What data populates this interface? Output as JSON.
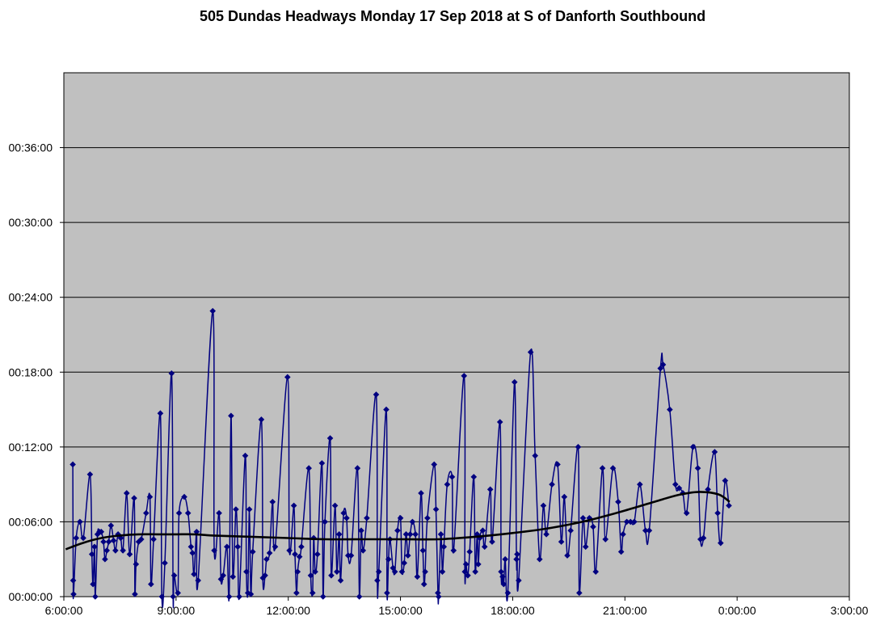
{
  "chart_data": {
    "type": "line",
    "title": "505 Dundas Headways Monday 17 Sep 2018 at S of Danforth Southbound",
    "xlabel": "",
    "ylabel": "",
    "x_unit": "hours",
    "y_unit": "minutes",
    "xlim": [
      6,
      27
    ],
    "ylim": [
      0,
      42
    ],
    "grid": true,
    "background_color": "#c0c0c0",
    "x_ticks": [
      {
        "value": 6,
        "label": "6:00:00"
      },
      {
        "value": 9,
        "label": "9:00:00"
      },
      {
        "value": 12,
        "label": "12:00:00"
      },
      {
        "value": 15,
        "label": "15:00:00"
      },
      {
        "value": 18,
        "label": "18:00:00"
      },
      {
        "value": 21,
        "label": "21:00:00"
      },
      {
        "value": 24,
        "label": "0:00:00"
      },
      {
        "value": 27,
        "label": "3:00:00"
      }
    ],
    "y_ticks": [
      {
        "value": 0,
        "label": "00:00:00"
      },
      {
        "value": 6,
        "label": "00:06:00"
      },
      {
        "value": 12,
        "label": "00:12:00"
      },
      {
        "value": 18,
        "label": "00:18:00"
      },
      {
        "value": 24,
        "label": "00:24:00"
      },
      {
        "value": 30,
        "label": "00:30:00"
      },
      {
        "value": 36,
        "label": "00:36:00"
      }
    ],
    "series": [
      {
        "color": "#000080",
        "marker": "diamond",
        "points": [
          [
            6.24,
            10.6
          ],
          [
            6.25,
            1.3
          ],
          [
            6.26,
            0.2
          ],
          [
            6.33,
            4.7
          ],
          [
            6.43,
            6.0
          ],
          [
            6.52,
            4.7
          ],
          [
            6.7,
            9.8
          ],
          [
            6.75,
            3.4
          ],
          [
            6.78,
            1.0
          ],
          [
            6.82,
            4.0
          ],
          [
            6.84,
            0.0
          ],
          [
            6.9,
            5.0
          ],
          [
            6.95,
            5.2
          ],
          [
            7.0,
            5.2
          ],
          [
            7.06,
            4.4
          ],
          [
            7.1,
            3.0
          ],
          [
            7.15,
            3.7
          ],
          [
            7.2,
            4.4
          ],
          [
            7.26,
            5.7
          ],
          [
            7.33,
            4.5
          ],
          [
            7.38,
            3.7
          ],
          [
            7.45,
            5.0
          ],
          [
            7.52,
            4.7
          ],
          [
            7.58,
            3.7
          ],
          [
            7.68,
            8.3
          ],
          [
            7.76,
            3.4
          ],
          [
            7.88,
            7.9
          ],
          [
            7.9,
            0.2
          ],
          [
            7.93,
            2.6
          ],
          [
            8.0,
            4.4
          ],
          [
            8.07,
            4.6
          ],
          [
            8.2,
            6.7
          ],
          [
            8.3,
            8.0
          ],
          [
            8.33,
            1.0
          ],
          [
            8.4,
            4.6
          ],
          [
            8.58,
            14.7
          ],
          [
            8.62,
            0.0
          ],
          [
            8.7,
            2.7
          ],
          [
            8.88,
            17.9
          ],
          [
            8.92,
            0.0
          ],
          [
            8.95,
            1.7
          ],
          [
            9.05,
            0.3
          ],
          [
            9.08,
            6.7
          ],
          [
            9.22,
            8.0
          ],
          [
            9.32,
            6.7
          ],
          [
            9.4,
            4.0
          ],
          [
            9.44,
            3.5
          ],
          [
            9.48,
            1.8
          ],
          [
            9.55,
            5.2
          ],
          [
            9.59,
            1.3
          ],
          [
            9.98,
            22.9
          ],
          [
            10.02,
            3.7
          ],
          [
            10.15,
            6.7
          ],
          [
            10.2,
            1.4
          ],
          [
            10.26,
            1.7
          ],
          [
            10.36,
            4.0
          ],
          [
            10.42,
            0.0
          ],
          [
            10.47,
            14.5
          ],
          [
            10.52,
            1.6
          ],
          [
            10.6,
            7.0
          ],
          [
            10.65,
            4.0
          ],
          [
            10.69,
            0.0
          ],
          [
            10.85,
            11.3
          ],
          [
            10.88,
            2.0
          ],
          [
            10.92,
            0.3
          ],
          [
            10.96,
            7.0
          ],
          [
            11.0,
            0.2
          ],
          [
            11.05,
            3.6
          ],
          [
            11.28,
            14.2
          ],
          [
            11.32,
            1.5
          ],
          [
            11.38,
            1.7
          ],
          [
            11.42,
            3.0
          ],
          [
            11.5,
            3.5
          ],
          [
            11.58,
            7.6
          ],
          [
            11.65,
            4.0
          ],
          [
            11.98,
            17.6
          ],
          [
            12.03,
            3.7
          ],
          [
            12.15,
            7.3
          ],
          [
            12.18,
            3.4
          ],
          [
            12.22,
            0.3
          ],
          [
            12.25,
            2.0
          ],
          [
            12.3,
            3.2
          ],
          [
            12.35,
            4.0
          ],
          [
            12.55,
            10.3
          ],
          [
            12.6,
            1.7
          ],
          [
            12.65,
            0.3
          ],
          [
            12.68,
            4.7
          ],
          [
            12.72,
            2.0
          ],
          [
            12.78,
            3.4
          ],
          [
            12.9,
            10.7
          ],
          [
            12.93,
            0.0
          ],
          [
            12.98,
            6.0
          ],
          [
            13.12,
            12.7
          ],
          [
            13.15,
            1.7
          ],
          [
            13.25,
            7.3
          ],
          [
            13.3,
            2.0
          ],
          [
            13.36,
            5.0
          ],
          [
            13.4,
            1.3
          ],
          [
            13.48,
            6.7
          ],
          [
            13.56,
            6.3
          ],
          [
            13.6,
            3.3
          ],
          [
            13.68,
            3.3
          ],
          [
            13.85,
            10.3
          ],
          [
            13.9,
            0.0
          ],
          [
            13.95,
            5.3
          ],
          [
            14.0,
            3.7
          ],
          [
            14.1,
            6.3
          ],
          [
            14.35,
            16.2
          ],
          [
            14.38,
            1.3
          ],
          [
            14.42,
            2.0
          ],
          [
            14.62,
            15.0
          ],
          [
            14.64,
            0.3
          ],
          [
            14.68,
            3.0
          ],
          [
            14.72,
            4.6
          ],
          [
            14.8,
            2.3
          ],
          [
            14.85,
            2.0
          ],
          [
            14.92,
            5.3
          ],
          [
            15.0,
            6.3
          ],
          [
            15.04,
            2.0
          ],
          [
            15.1,
            2.7
          ],
          [
            15.15,
            5.0
          ],
          [
            15.2,
            3.3
          ],
          [
            15.26,
            5.0
          ],
          [
            15.32,
            6.0
          ],
          [
            15.4,
            5.0
          ],
          [
            15.45,
            1.6
          ],
          [
            15.55,
            8.3
          ],
          [
            15.6,
            3.7
          ],
          [
            15.63,
            1.0
          ],
          [
            15.66,
            2.0
          ],
          [
            15.72,
            6.3
          ],
          [
            15.9,
            10.6
          ],
          [
            15.95,
            7.0
          ],
          [
            16.0,
            0.3
          ],
          [
            16.02,
            0.0
          ],
          [
            16.08,
            5.0
          ],
          [
            16.12,
            2.0
          ],
          [
            16.16,
            4.0
          ],
          [
            16.25,
            9.0
          ],
          [
            16.38,
            9.6
          ],
          [
            16.42,
            3.7
          ],
          [
            16.7,
            17.7
          ],
          [
            16.72,
            2.0
          ],
          [
            16.75,
            2.6
          ],
          [
            16.8,
            1.7
          ],
          [
            16.85,
            3.6
          ],
          [
            16.96,
            9.6
          ],
          [
            17.0,
            2.0
          ],
          [
            17.05,
            5.0
          ],
          [
            17.08,
            2.6
          ],
          [
            17.12,
            4.7
          ],
          [
            17.2,
            5.3
          ],
          [
            17.25,
            4.0
          ],
          [
            17.4,
            8.6
          ],
          [
            17.45,
            4.4
          ],
          [
            17.66,
            14.0
          ],
          [
            17.69,
            2.0
          ],
          [
            17.73,
            1.6
          ],
          [
            17.76,
            1.0
          ],
          [
            17.8,
            3.0
          ],
          [
            17.87,
            0.3
          ],
          [
            18.05,
            17.2
          ],
          [
            18.1,
            3.0
          ],
          [
            18.12,
            3.4
          ],
          [
            18.16,
            1.3
          ],
          [
            18.48,
            19.6
          ],
          [
            18.6,
            11.3
          ],
          [
            18.72,
            3.0
          ],
          [
            18.82,
            7.3
          ],
          [
            18.9,
            5.0
          ],
          [
            19.05,
            9.0
          ],
          [
            19.2,
            10.6
          ],
          [
            19.3,
            4.4
          ],
          [
            19.38,
            8.0
          ],
          [
            19.46,
            3.3
          ],
          [
            19.55,
            5.3
          ],
          [
            19.75,
            12.0
          ],
          [
            19.78,
            0.3
          ],
          [
            19.88,
            6.3
          ],
          [
            19.95,
            4.0
          ],
          [
            20.05,
            6.3
          ],
          [
            20.15,
            5.6
          ],
          [
            20.22,
            2.0
          ],
          [
            20.4,
            10.3
          ],
          [
            20.48,
            4.6
          ],
          [
            20.68,
            10.3
          ],
          [
            20.82,
            7.6
          ],
          [
            20.9,
            3.6
          ],
          [
            20.95,
            5.0
          ],
          [
            21.05,
            6.0
          ],
          [
            21.15,
            6.0
          ],
          [
            21.25,
            6.0
          ],
          [
            21.4,
            9.0
          ],
          [
            21.55,
            5.3
          ],
          [
            21.65,
            5.3
          ],
          [
            21.95,
            18.3
          ],
          [
            22.02,
            18.6
          ],
          [
            22.2,
            15.0
          ],
          [
            22.35,
            9.0
          ],
          [
            22.45,
            8.7
          ],
          [
            22.55,
            8.3
          ],
          [
            22.65,
            6.7
          ],
          [
            22.82,
            12.0
          ],
          [
            22.95,
            10.3
          ],
          [
            23.02,
            4.6
          ],
          [
            23.1,
            4.7
          ],
          [
            23.22,
            8.6
          ],
          [
            23.4,
            11.6
          ],
          [
            23.48,
            6.7
          ],
          [
            23.56,
            4.3
          ],
          [
            23.68,
            9.3
          ],
          [
            23.78,
            7.3
          ]
        ]
      },
      {
        "color": "#000000",
        "marker": "none",
        "trend": true,
        "points": [
          [
            6.05,
            3.8
          ],
          [
            6.5,
            4.3
          ],
          [
            7.0,
            4.7
          ],
          [
            7.5,
            4.9
          ],
          [
            8.0,
            5.0
          ],
          [
            8.5,
            5.0
          ],
          [
            9.0,
            5.0
          ],
          [
            9.5,
            5.0
          ],
          [
            10.0,
            4.9
          ],
          [
            11.0,
            4.8
          ],
          [
            12.0,
            4.7
          ],
          [
            13.0,
            4.6
          ],
          [
            14.0,
            4.6
          ],
          [
            15.0,
            4.6
          ],
          [
            16.0,
            4.6
          ],
          [
            17.0,
            4.8
          ],
          [
            18.0,
            5.1
          ],
          [
            19.0,
            5.5
          ],
          [
            20.0,
            6.1
          ],
          [
            21.0,
            6.9
          ],
          [
            22.0,
            7.8
          ],
          [
            22.5,
            8.2
          ],
          [
            23.0,
            8.4
          ],
          [
            23.5,
            8.2
          ],
          [
            23.8,
            7.6
          ]
        ]
      }
    ]
  }
}
